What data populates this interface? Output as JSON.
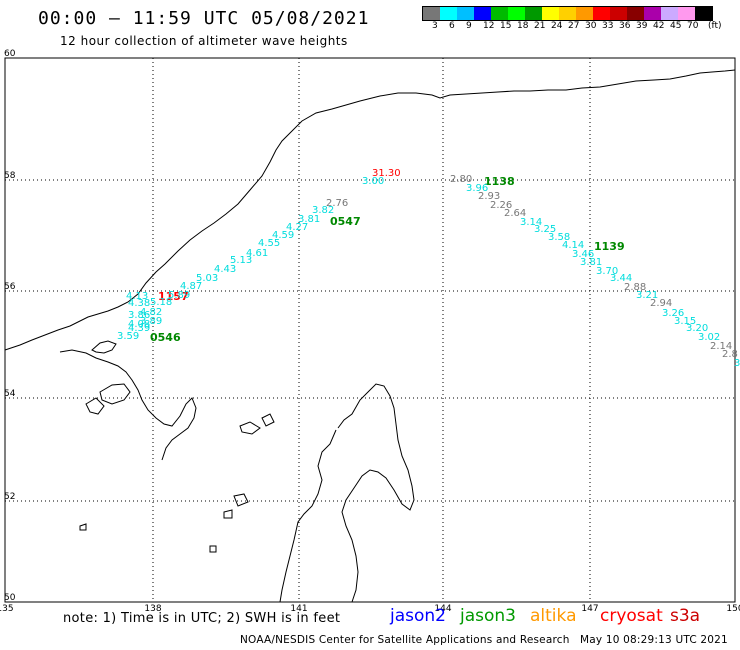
{
  "header": {
    "title": "00:00 — 11:59 UTC 05/08/2021",
    "subtitle": "12 hour collection of altimeter wave heights"
  },
  "colorbar": {
    "colors": [
      "#777777",
      "#00ffff",
      "#00bfff",
      "#0000ff",
      "#00bb00",
      "#00ff00",
      "#009900",
      "#ffff00",
      "#ffd000",
      "#ff9900",
      "#ff0000",
      "#cc0000",
      "#880000",
      "#aa00aa",
      "#ccaaff",
      "#ff99ee",
      "#000000"
    ],
    "labels": [
      "3",
      "6",
      "9",
      "12",
      "15",
      "18",
      "21",
      "24",
      "27",
      "30",
      "33",
      "36",
      "39",
      "42",
      "45",
      "70",
      "(ft)"
    ]
  },
  "axes": {
    "lat_labels": [
      "60",
      "58",
      "56",
      "54",
      "52",
      "50"
    ],
    "lon_labels": [
      "135",
      "138",
      "141",
      "144",
      "147",
      "150"
    ]
  },
  "passes": [
    {
      "time": "0546",
      "color": "#008800"
    },
    {
      "time": "1157",
      "color": "#ff0000"
    },
    {
      "time": "0547",
      "color": "#008800"
    },
    {
      "time": "1138",
      "color": "#008800"
    },
    {
      "time": "1139",
      "color": "#008800"
    }
  ],
  "track_a": [
    {
      "v": "3.59",
      "c": "#00dddd"
    },
    {
      "v": "4.39",
      "c": "#00dddd"
    },
    {
      "v": "4.08",
      "c": "#00dddd"
    },
    {
      "v": "3.89",
      "c": "#00dddd"
    },
    {
      "v": "3.86",
      "c": "#00dddd"
    },
    {
      "v": "4.82",
      "c": "#00dddd"
    },
    {
      "v": "4.38",
      "c": "#00dddd"
    },
    {
      "v": "5.18",
      "c": "#00dddd"
    },
    {
      "v": "4.13",
      "c": "#00dddd"
    },
    {
      "v": "5.89",
      "c": "#00dddd"
    },
    {
      "v": "4.87",
      "c": "#00dddd"
    },
    {
      "v": "5.03",
      "c": "#00dddd"
    },
    {
      "v": "4.43",
      "c": "#00dddd"
    },
    {
      "v": "5.13",
      "c": "#00dddd"
    },
    {
      "v": "4.61",
      "c": "#00dddd"
    },
    {
      "v": "4.55",
      "c": "#00dddd"
    },
    {
      "v": "4.59",
      "c": "#00dddd"
    },
    {
      "v": "4.27",
      "c": "#00dddd"
    },
    {
      "v": "3.81",
      "c": "#00dddd"
    },
    {
      "v": "3.82",
      "c": "#00dddd"
    },
    {
      "v": "2.76",
      "c": "#777777"
    },
    {
      "v": "3.00",
      "c": "#00dddd"
    },
    {
      "v": "31.30",
      "c": "#ff0000"
    }
  ],
  "track_b": [
    {
      "v": "2.80",
      "c": "#777777"
    },
    {
      "v": "3.96",
      "c": "#00dddd"
    },
    {
      "v": "2.93",
      "c": "#777777"
    },
    {
      "v": "2.26",
      "c": "#777777"
    },
    {
      "v": "2.64",
      "c": "#777777"
    },
    {
      "v": "3.14",
      "c": "#00dddd"
    },
    {
      "v": "3.25",
      "c": "#00dddd"
    },
    {
      "v": "3.58",
      "c": "#00dddd"
    },
    {
      "v": "4.14",
      "c": "#00dddd"
    },
    {
      "v": "3.46",
      "c": "#00dddd"
    },
    {
      "v": "3.81",
      "c": "#00dddd"
    },
    {
      "v": "3.70",
      "c": "#00dddd"
    },
    {
      "v": "3.44",
      "c": "#00dddd"
    },
    {
      "v": "2.88",
      "c": "#777777"
    },
    {
      "v": "3.21",
      "c": "#00dddd"
    },
    {
      "v": "2.94",
      "c": "#777777"
    },
    {
      "v": "3.26",
      "c": "#00dddd"
    },
    {
      "v": "3.15",
      "c": "#00dddd"
    },
    {
      "v": "3.20",
      "c": "#00dddd"
    },
    {
      "v": "3.02",
      "c": "#00dddd"
    },
    {
      "v": "2.14",
      "c": "#777777"
    },
    {
      "v": "2.8",
      "c": "#777777"
    },
    {
      "v": "3",
      "c": "#00dddd"
    }
  ],
  "footer": {
    "note": "note: 1) Time is in UTC; 2) SWH is in feet",
    "satellites": [
      {
        "name": "jason2",
        "color": "#0000ff"
      },
      {
        "name": "jason3",
        "color": "#009900"
      },
      {
        "name": "altika",
        "color": "#ff9900"
      },
      {
        "name": "cryosat",
        "color": "#ff0000"
      },
      {
        "name": "s3a",
        "color": "#cc0000"
      }
    ],
    "credit": "NOAA/NESDIS Center for Satellite Applications and Research",
    "timestamp": "May 10 08:29:13 UTC 2021"
  }
}
